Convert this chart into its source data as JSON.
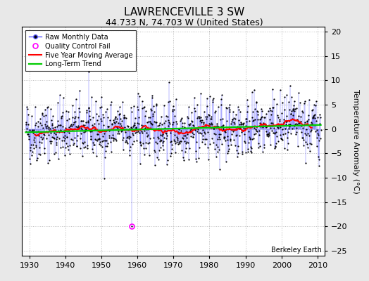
{
  "title": "LAWRENCEVILLE 3 SW",
  "subtitle": "44.733 N, 74.703 W (United States)",
  "ylabel": "Temperature Anomaly (°C)",
  "watermark": "Berkeley Earth",
  "xlim": [
    1928,
    2012
  ],
  "ylim": [
    -26,
    21
  ],
  "yticks": [
    -25,
    -20,
    -15,
    -10,
    -5,
    0,
    5,
    10,
    15,
    20
  ],
  "xticks": [
    1930,
    1940,
    1950,
    1960,
    1970,
    1980,
    1990,
    2000,
    2010
  ],
  "year_start": 1929,
  "year_end": 2011,
  "seed": 42,
  "qc_fail_year": 1958.5,
  "qc_fail_value": -20.0,
  "bg_color": "#e8e8e8",
  "plot_bg_color": "#ffffff",
  "raw_line_color": "#5555ff",
  "raw_dot_color": "#000000",
  "qc_color": "#ff00ff",
  "moving_avg_color": "#ff0000",
  "trend_color": "#00cc00",
  "grid_color": "#bbbbbb",
  "title_fontsize": 11,
  "subtitle_fontsize": 9,
  "label_fontsize": 8,
  "tick_fontsize": 8,
  "noise_std": 3.0,
  "trend_slope": 0.012
}
